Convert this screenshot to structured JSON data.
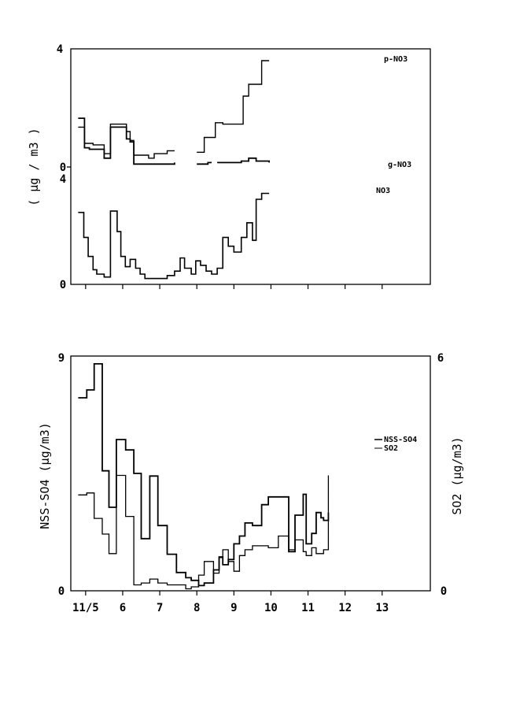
{
  "chart_data": [
    {
      "type": "line",
      "step": true,
      "panel": "upper",
      "ylabel": "( μg / m3 )",
      "ylim": [
        0,
        4
      ],
      "yticks": [
        "0",
        "4"
      ],
      "x_range": [
        4.6,
        14.3
      ],
      "series": [
        {
          "name": "p-NO3",
          "segments": [
            [
              [
                4.8,
                1.35
              ],
              [
                4.97,
                0.8
              ],
              [
                5.1,
                0.8
              ],
              [
                5.2,
                0.75
              ],
              [
                5.37,
                0.75
              ],
              [
                5.5,
                0.45
              ],
              [
                5.67,
                1.45
              ],
              [
                5.9,
                1.45
              ],
              [
                6.0,
                1.45
              ],
              [
                6.1,
                1.2
              ],
              [
                6.2,
                0.9
              ],
              [
                6.3,
                0.4
              ],
              [
                6.5,
                0.4
              ],
              [
                6.7,
                0.3
              ],
              [
                6.85,
                0.45
              ],
              [
                7.2,
                0.55
              ],
              [
                7.4,
                0.55
              ]
            ],
            [
              [
                8.0,
                0.5
              ],
              [
                8.2,
                1.0
              ],
              [
                8.5,
                1.5
              ],
              [
                8.7,
                1.45
              ],
              [
                9.1,
                1.45
              ],
              [
                9.25,
                2.4
              ],
              [
                9.4,
                2.8
              ],
              [
                9.75,
                3.6
              ],
              [
                9.95,
                3.6
              ]
            ]
          ]
        },
        {
          "name": "g-NO3",
          "segments": [
            [
              [
                4.8,
                1.65
              ],
              [
                4.97,
                0.65
              ],
              [
                5.1,
                0.6
              ],
              [
                5.37,
                0.6
              ],
              [
                5.5,
                0.3
              ],
              [
                5.67,
                1.35
              ],
              [
                6.05,
                1.35
              ],
              [
                6.1,
                0.95
              ],
              [
                6.2,
                0.85
              ],
              [
                6.3,
                0.1
              ],
              [
                6.8,
                0.1
              ],
              [
                7.4,
                0.15
              ]
            ],
            [
              [
                8.0,
                0.1
              ],
              [
                8.3,
                0.15
              ],
              [
                8.4,
                0.15
              ]
            ],
            [
              [
                8.55,
                0.15
              ],
              [
                8.9,
                0.15
              ],
              [
                9.2,
                0.2
              ],
              [
                9.4,
                0.3
              ],
              [
                9.6,
                0.2
              ],
              [
                9.95,
                0.15
              ]
            ]
          ]
        },
        {
          "name": "NO3",
          "segments": [
            [
              [
                4.8,
                2.45
              ],
              [
                4.95,
                1.6
              ],
              [
                5.07,
                0.95
              ],
              [
                5.2,
                0.5
              ],
              [
                5.3,
                0.35
              ],
              [
                5.5,
                0.25
              ],
              [
                5.67,
                2.5
              ],
              [
                5.85,
                1.8
              ],
              [
                5.95,
                0.95
              ],
              [
                6.07,
                0.6
              ],
              [
                6.2,
                0.85
              ],
              [
                6.35,
                0.55
              ],
              [
                6.47,
                0.35
              ],
              [
                6.6,
                0.2
              ],
              [
                7.05,
                0.2
              ],
              [
                7.2,
                0.3
              ],
              [
                7.4,
                0.45
              ],
              [
                7.55,
                0.9
              ],
              [
                7.67,
                0.55
              ],
              [
                7.85,
                0.35
              ],
              [
                7.97,
                0.8
              ],
              [
                8.1,
                0.65
              ],
              [
                8.25,
                0.45
              ],
              [
                8.4,
                0.35
              ],
              [
                8.55,
                0.55
              ],
              [
                8.7,
                1.6
              ],
              [
                8.85,
                1.3
              ],
              [
                9.0,
                1.1
              ],
              [
                9.2,
                1.6
              ],
              [
                9.35,
                2.1
              ],
              [
                9.5,
                1.5
              ],
              [
                9.6,
                2.9
              ],
              [
                9.75,
                3.1
              ],
              [
                9.95,
                3.1
              ]
            ]
          ]
        }
      ]
    },
    {
      "type": "line",
      "step": true,
      "panel": "lower",
      "ylabel": "NSS-SO4  (μg/m3)",
      "ylabel_right": "SO2  (μg/m3)",
      "ylim": [
        0,
        9
      ],
      "ylim_right": [
        0,
        6
      ],
      "yticks": [
        "0",
        "9"
      ],
      "yticks_right": [
        "0",
        "6"
      ],
      "x_range": [
        4.6,
        14.3
      ],
      "xticks": [
        {
          "label": "11/5",
          "x": 5
        },
        {
          "label": "6",
          "x": 6
        },
        {
          "label": "7",
          "x": 7
        },
        {
          "label": "8",
          "x": 8
        },
        {
          "label": "9",
          "x": 9
        },
        {
          "label": "10",
          "x": 10
        },
        {
          "label": "11",
          "x": 11
        },
        {
          "label": "12",
          "x": 12
        },
        {
          "label": "13",
          "x": 13
        }
      ],
      "series": [
        {
          "name": "NSS-SO4",
          "axis": "left",
          "segments": [
            [
              [
                4.8,
                7.4
              ],
              [
                5.03,
                7.7
              ],
              [
                5.23,
                8.7
              ],
              [
                5.45,
                4.6
              ],
              [
                5.63,
                3.2
              ],
              [
                5.83,
                5.8
              ],
              [
                6.08,
                5.4
              ],
              [
                6.3,
                4.5
              ],
              [
                6.5,
                2.0
              ],
              [
                6.73,
                4.4
              ],
              [
                6.95,
                2.5
              ],
              [
                7.2,
                1.4
              ],
              [
                7.45,
                0.7
              ],
              [
                7.7,
                0.5
              ],
              [
                7.85,
                0.4
              ],
              [
                8.05,
                0.2
              ],
              [
                8.2,
                0.3
              ],
              [
                8.45,
                0.8
              ],
              [
                8.6,
                1.3
              ],
              [
                8.7,
                1.0
              ],
              [
                8.85,
                1.2
              ],
              [
                9.0,
                1.8
              ],
              [
                9.15,
                2.1
              ],
              [
                9.3,
                2.6
              ],
              [
                9.5,
                2.5
              ],
              [
                9.75,
                3.3
              ],
              [
                9.93,
                3.6
              ],
              [
                10.2,
                3.6
              ],
              [
                10.48,
                1.5
              ],
              [
                10.65,
                2.9
              ],
              [
                10.87,
                3.7
              ],
              [
                10.95,
                1.8
              ],
              [
                11.1,
                2.2
              ],
              [
                11.22,
                3.0
              ],
              [
                11.35,
                2.8
              ],
              [
                11.42,
                2.7
              ],
              [
                11.55,
                3.0
              ]
            ]
          ]
        },
        {
          "name": "SO2",
          "axis": "right",
          "segments": [
            [
              [
                4.8,
                2.45
              ],
              [
                5.03,
                2.5
              ],
              [
                5.23,
                1.85
              ],
              [
                5.45,
                1.45
              ],
              [
                5.63,
                0.95
              ],
              [
                5.83,
                2.95
              ],
              [
                6.08,
                1.9
              ],
              [
                6.3,
                0.15
              ],
              [
                6.5,
                0.2
              ],
              [
                6.73,
                0.3
              ],
              [
                6.95,
                0.2
              ],
              [
                7.2,
                0.15
              ],
              [
                7.45,
                0.15
              ],
              [
                7.7,
                0.05
              ],
              [
                7.85,
                0.1
              ],
              [
                8.05,
                0.4
              ],
              [
                8.2,
                0.75
              ],
              [
                8.45,
                0.45
              ],
              [
                8.6,
                0.85
              ],
              [
                8.7,
                1.05
              ],
              [
                8.85,
                0.75
              ],
              [
                9.0,
                0.5
              ],
              [
                9.15,
                0.9
              ],
              [
                9.3,
                1.05
              ],
              [
                9.5,
                1.15
              ],
              [
                9.75,
                1.15
              ],
              [
                9.93,
                1.1
              ],
              [
                10.2,
                1.4
              ],
              [
                10.48,
                1.05
              ],
              [
                10.65,
                1.3
              ],
              [
                10.87,
                1.0
              ],
              [
                10.95,
                0.9
              ],
              [
                11.1,
                1.1
              ],
              [
                11.22,
                0.95
              ],
              [
                11.35,
                0.95
              ],
              [
                11.42,
                1.05
              ],
              [
                11.55,
                2.95
              ]
            ]
          ]
        }
      ]
    }
  ]
}
